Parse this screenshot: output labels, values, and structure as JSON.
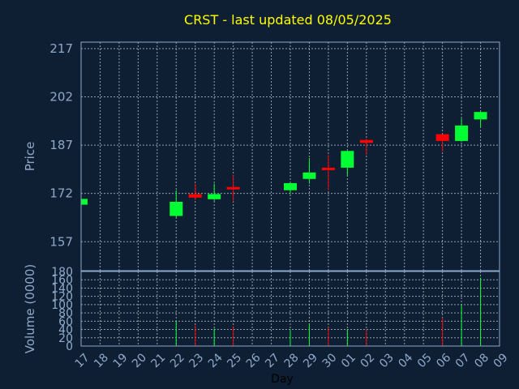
{
  "chart_data": {
    "type": "candlestick",
    "title": "CRST - last updated 08/05/2025",
    "xlabel": "Day",
    "price_panel": {
      "ylabel": "Price",
      "yticks": [
        "157",
        "172",
        "187",
        "202",
        "217"
      ],
      "ylim": [
        148,
        219
      ]
    },
    "volume_panel": {
      "ylabel": "Volume (0000)",
      "yticks": [
        "0",
        "20",
        "40",
        "60",
        "80",
        "100",
        "120",
        "140",
        "160",
        "180"
      ],
      "ylim": [
        0,
        180
      ]
    },
    "x_labels": [
      "17",
      "18",
      "19",
      "20",
      "21",
      "22",
      "23",
      "24",
      "25",
      "26",
      "27",
      "28",
      "29",
      "30",
      "01",
      "02",
      "03",
      "04",
      "05",
      "06",
      "07",
      "08",
      "09"
    ],
    "candles": [
      {
        "x": "17",
        "open": 168.5,
        "close": 170.3,
        "high": 170.3,
        "low": 168.5,
        "volume": 0
      },
      {
        "x": "22",
        "open": 165.0,
        "close": 169.4,
        "high": 173.0,
        "low": 164.5,
        "volume": 60
      },
      {
        "x": "23",
        "open": 171.8,
        "close": 170.7,
        "high": 175.0,
        "low": 170.0,
        "volume": 50
      },
      {
        "x": "24",
        "open": 170.2,
        "close": 171.8,
        "high": 175.0,
        "low": 169.7,
        "volume": 42
      },
      {
        "x": "25",
        "open": 174.0,
        "close": 173.5,
        "high": 177.8,
        "low": 169.5,
        "volume": 48
      },
      {
        "x": "28",
        "open": 173.0,
        "close": 175.2,
        "high": 175.2,
        "low": 171.8,
        "volume": 40
      },
      {
        "x": "29",
        "open": 176.5,
        "close": 178.5,
        "high": 183.0,
        "low": 175.0,
        "volume": 55
      },
      {
        "x": "30",
        "open": 180.0,
        "close": 179.5,
        "high": 184.0,
        "low": 173.0,
        "volume": 45
      },
      {
        "x": "01",
        "open": 180.0,
        "close": 185.2,
        "high": 185.2,
        "low": 177.5,
        "volume": 40
      },
      {
        "x": "02",
        "open": 188.6,
        "close": 187.7,
        "high": 189.0,
        "low": 184.0,
        "volume": 40
      },
      {
        "x": "06",
        "open": 190.4,
        "close": 188.3,
        "high": 190.4,
        "low": 185.0,
        "volume": 68
      },
      {
        "x": "07",
        "open": 188.3,
        "close": 193.1,
        "high": 195.3,
        "low": 188.0,
        "volume": 100
      },
      {
        "x": "08",
        "open": 195.0,
        "close": 197.3,
        "high": 197.3,
        "low": 192.5,
        "volume": 165
      }
    ],
    "colors": {
      "up": "#00ff33",
      "down": "#ff0000",
      "background": "#0e1f33",
      "title": "#ffff00",
      "axis_text": "#8fa9c9"
    },
    "grid": true
  }
}
